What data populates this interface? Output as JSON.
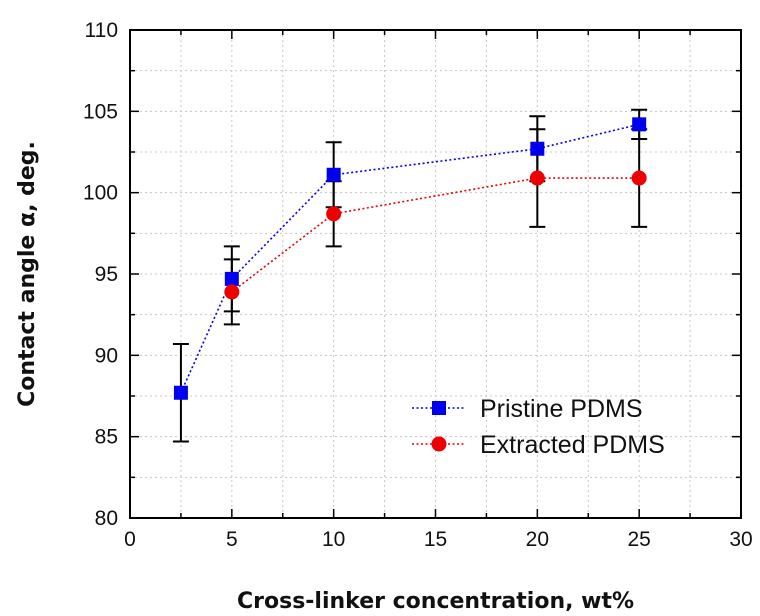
{
  "chart_data": {
    "type": "scatter",
    "title": "",
    "xlabel": "Cross-linker concentration, wt%",
    "ylabel": "Contact angle α, deg.",
    "xlim": [
      0,
      30
    ],
    "ylim": [
      80,
      110
    ],
    "x_ticks": [
      0,
      5,
      10,
      15,
      20,
      25,
      30
    ],
    "y_ticks": [
      80,
      85,
      90,
      95,
      100,
      105,
      110
    ],
    "grid": true,
    "legend_position": "bottom-right",
    "series": [
      {
        "name": "Pristine PDMS",
        "color": "#0000ee",
        "marker": "square",
        "line": "dotted",
        "x": [
          2.5,
          5,
          10,
          20,
          25
        ],
        "y": [
          87.7,
          94.7,
          101.1,
          102.7,
          104.2
        ],
        "error": [
          3.0,
          2.0,
          2.0,
          2.0,
          0.9
        ]
      },
      {
        "name": "Extracted PDMS",
        "color": "#ee0000",
        "marker": "circle",
        "line": "dotted",
        "x": [
          5,
          10,
          20,
          25
        ],
        "y": [
          93.9,
          98.7,
          100.9,
          100.9
        ],
        "error": [
          2.0,
          2.0,
          3.0,
          3.0
        ]
      }
    ]
  }
}
